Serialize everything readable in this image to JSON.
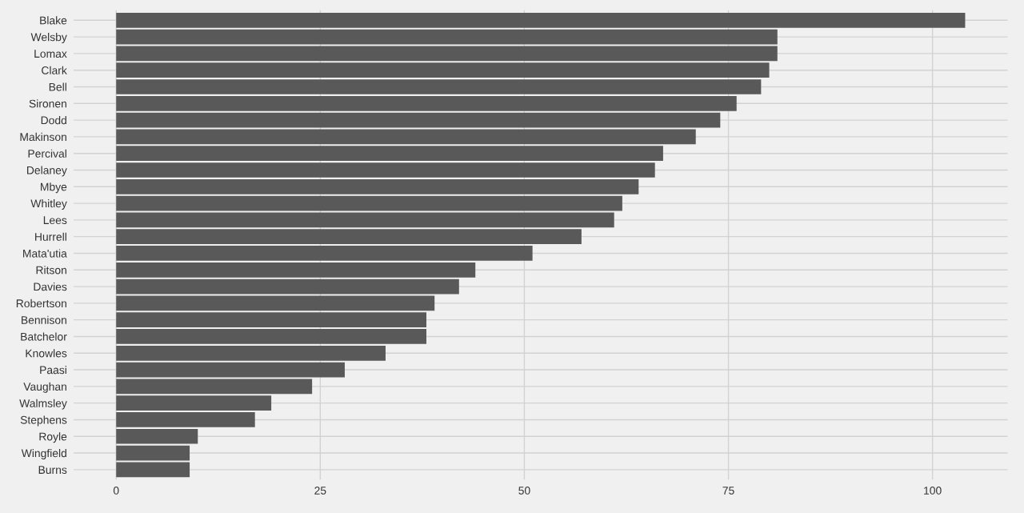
{
  "chart_data": {
    "type": "bar",
    "orientation": "horizontal",
    "categories": [
      "Blake",
      "Welsby",
      "Lomax",
      "Clark",
      "Bell",
      "Sironen",
      "Dodd",
      "Makinson",
      "Percival",
      "Delaney",
      "Mbye",
      "Whitley",
      "Lees",
      "Hurrell",
      "Mata'utia",
      "Ritson",
      "Davies",
      "Robertson",
      "Bennison",
      "Batchelor",
      "Knowles",
      "Paasi",
      "Vaughan",
      "Walmsley",
      "Stephens",
      "Royle",
      "Wingfield",
      "Burns"
    ],
    "values": [
      104,
      81,
      81,
      80,
      79,
      76,
      74,
      71,
      67,
      66,
      64,
      62,
      61,
      57,
      51,
      44,
      42,
      39,
      38,
      38,
      33,
      28,
      24,
      19,
      17,
      10,
      9,
      9
    ],
    "color": "#595959",
    "xlim": [
      -5.2,
      109.2
    ],
    "xticks": [
      0,
      25,
      50,
      75,
      100
    ],
    "grid": true
  }
}
